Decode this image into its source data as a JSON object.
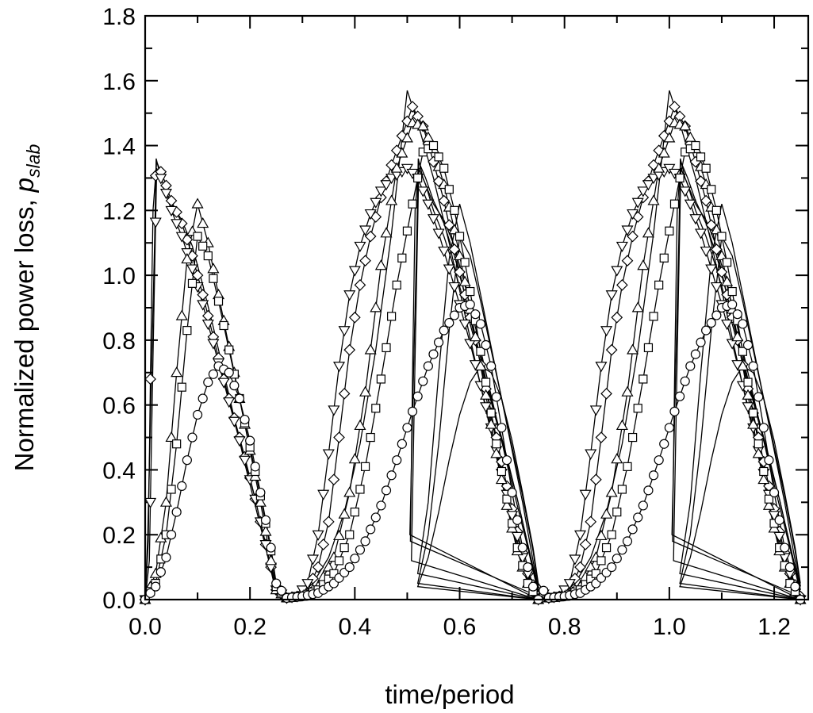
{
  "chart_data": {
    "type": "line",
    "xlabel": "time/period",
    "ylabel_main": "Normalized power loss, ",
    "ylabel_symbol": "p",
    "ylabel_subscript": "slab",
    "xlim": [
      0,
      1.265
    ],
    "ylim": [
      0,
      1.8
    ],
    "x_ticks": [
      0.0,
      0.2,
      0.4,
      0.6,
      0.8,
      1.0,
      1.2
    ],
    "x_tick_labels": [
      "0.0",
      "0.2",
      "0.4",
      "0.6",
      "0.8",
      "1.0",
      "1.2"
    ],
    "y_ticks": [
      0.0,
      0.2,
      0.4,
      0.6,
      0.8,
      1.0,
      1.2,
      1.4,
      1.6,
      1.8
    ],
    "y_tick_labels": [
      "0.0",
      "0.2",
      "0.4",
      "0.6",
      "0.8",
      "1.0",
      "1.2",
      "1.4",
      "1.6",
      "1.8"
    ],
    "grid": false,
    "legend": "none",
    "period": 0.5,
    "x_end": 1.25,
    "series": [
      {
        "marker": "none",
        "curve": [
          [
            0,
            0
          ],
          [
            0.005,
            0.2
          ],
          [
            0.012,
            0.7
          ],
          [
            0.018,
            1.1
          ],
          [
            0.021,
            1.36
          ],
          [
            0.03,
            1.3
          ],
          [
            0.05,
            1.22
          ],
          [
            0.07,
            1.17
          ],
          [
            0.09,
            1.09
          ],
          [
            0.11,
            0.97
          ],
          [
            0.13,
            0.84
          ],
          [
            0.15,
            0.7
          ],
          [
            0.17,
            0.56
          ],
          [
            0.19,
            0.42
          ],
          [
            0.21,
            0.29
          ],
          [
            0.23,
            0.16
          ],
          [
            0.25,
            0.02
          ],
          [
            0.26,
            0
          ],
          [
            0.29,
            0.01
          ],
          [
            0.32,
            0.05
          ],
          [
            0.35,
            0.13
          ],
          [
            0.38,
            0.27
          ],
          [
            0.41,
            0.48
          ],
          [
            0.44,
            0.77
          ],
          [
            0.47,
            1.13
          ],
          [
            0.5,
            1.57
          ],
          [
            0.5,
            1.57
          ],
          [
            0.52,
            1.47
          ],
          [
            0.55,
            1.3
          ],
          [
            0.58,
            1.1
          ],
          [
            0.61,
            0.88
          ],
          [
            0.64,
            0.66
          ],
          [
            0.67,
            0.44
          ],
          [
            0.7,
            0.23
          ],
          [
            0.73,
            0.07
          ],
          [
            0.75,
            0
          ]
        ]
      },
      {
        "marker": "diamond",
        "curve": [
          [
            0,
            0
          ],
          [
            0.006,
            0.18
          ],
          [
            0.01,
            0.68
          ],
          [
            0.015,
            1.2
          ],
          [
            0.022,
            1.35
          ],
          [
            0.035,
            1.3
          ],
          [
            0.05,
            1.23
          ],
          [
            0.07,
            1.16
          ],
          [
            0.09,
            1.06
          ],
          [
            0.11,
            0.94
          ],
          [
            0.13,
            0.81
          ],
          [
            0.15,
            0.68
          ],
          [
            0.17,
            0.56
          ],
          [
            0.19,
            0.44
          ],
          [
            0.21,
            0.31
          ],
          [
            0.23,
            0.17
          ],
          [
            0.25,
            0.03
          ],
          [
            0.27,
            0.005
          ],
          [
            0.29,
            0.01
          ],
          [
            0.31,
            0.03
          ],
          [
            0.33,
            0.1
          ],
          [
            0.35,
            0.24
          ],
          [
            0.37,
            0.5
          ],
          [
            0.39,
            0.77
          ],
          [
            0.41,
            0.97
          ],
          [
            0.43,
            1.12
          ],
          [
            0.45,
            1.24
          ],
          [
            0.47,
            1.34
          ],
          [
            0.49,
            1.43
          ],
          [
            0.51,
            1.52
          ],
          [
            0.53,
            1.46
          ],
          [
            0.55,
            1.35
          ],
          [
            0.57,
            1.23
          ],
          [
            0.59,
            1.08
          ],
          [
            0.61,
            0.94
          ],
          [
            0.63,
            0.8
          ],
          [
            0.65,
            0.65
          ],
          [
            0.67,
            0.5
          ],
          [
            0.69,
            0.35
          ],
          [
            0.71,
            0.21
          ],
          [
            0.73,
            0.08
          ],
          [
            0.75,
            0.01
          ]
        ]
      },
      {
        "marker": "triangle-down",
        "curve": [
          [
            0,
            0
          ],
          [
            0.008,
            0.12
          ],
          [
            0.015,
            0.75
          ],
          [
            0.022,
            1.33
          ],
          [
            0.035,
            1.28
          ],
          [
            0.05,
            1.2
          ],
          [
            0.07,
            1.12
          ],
          [
            0.09,
            1.02
          ],
          [
            0.11,
            0.91
          ],
          [
            0.13,
            0.79
          ],
          [
            0.15,
            0.67
          ],
          [
            0.17,
            0.55
          ],
          [
            0.19,
            0.43
          ],
          [
            0.21,
            0.31
          ],
          [
            0.23,
            0.17
          ],
          [
            0.25,
            0.03
          ],
          [
            0.27,
            0.005
          ],
          [
            0.29,
            0.01
          ],
          [
            0.31,
            0.05
          ],
          [
            0.33,
            0.2
          ],
          [
            0.35,
            0.45
          ],
          [
            0.37,
            0.72
          ],
          [
            0.39,
            0.94
          ],
          [
            0.41,
            1.09
          ],
          [
            0.43,
            1.19
          ],
          [
            0.45,
            1.26
          ],
          [
            0.47,
            1.3
          ],
          [
            0.49,
            1.32
          ],
          [
            0.5,
            1.33
          ],
          [
            0.52,
            1.3
          ],
          [
            0.54,
            1.22
          ],
          [
            0.56,
            1.13
          ],
          [
            0.58,
            1.02
          ],
          [
            0.6,
            0.91
          ],
          [
            0.62,
            0.79
          ],
          [
            0.64,
            0.66
          ],
          [
            0.66,
            0.53
          ],
          [
            0.68,
            0.39
          ],
          [
            0.7,
            0.26
          ],
          [
            0.72,
            0.13
          ],
          [
            0.74,
            0.03
          ],
          [
            0.75,
            0
          ]
        ]
      },
      {
        "marker": "triangle-up",
        "curve": [
          [
            0,
            0
          ],
          [
            0.02,
            0.08
          ],
          [
            0.04,
            0.3
          ],
          [
            0.06,
            0.7
          ],
          [
            0.08,
            1.05
          ],
          [
            0.1,
            1.22
          ],
          [
            0.12,
            1.1
          ],
          [
            0.14,
            0.94
          ],
          [
            0.16,
            0.78
          ],
          [
            0.18,
            0.62
          ],
          [
            0.2,
            0.46
          ],
          [
            0.22,
            0.3
          ],
          [
            0.24,
            0.12
          ],
          [
            0.25,
            0.03
          ],
          [
            0.27,
            0.005
          ],
          [
            0.3,
            0.01
          ],
          [
            0.33,
            0.04
          ],
          [
            0.36,
            0.13
          ],
          [
            0.39,
            0.33
          ],
          [
            0.42,
            0.64
          ],
          [
            0.45,
            1.03
          ],
          [
            0.48,
            1.33
          ],
          [
            0.51,
            1.47
          ],
          [
            0.53,
            1.46
          ],
          [
            0.55,
            1.39
          ],
          [
            0.57,
            1.28
          ],
          [
            0.59,
            1.14
          ],
          [
            0.61,
            0.98
          ],
          [
            0.63,
            0.81
          ],
          [
            0.65,
            0.63
          ],
          [
            0.67,
            0.45
          ],
          [
            0.69,
            0.29
          ],
          [
            0.71,
            0.15
          ],
          [
            0.73,
            0.05
          ],
          [
            0.75,
            0
          ]
        ]
      },
      {
        "marker": "square",
        "curve": [
          [
            0,
            0
          ],
          [
            0.02,
            0.05
          ],
          [
            0.04,
            0.2
          ],
          [
            0.06,
            0.48
          ],
          [
            0.08,
            0.83
          ],
          [
            0.1,
            1.12
          ],
          [
            0.12,
            1.06
          ],
          [
            0.14,
            0.92
          ],
          [
            0.16,
            0.77
          ],
          [
            0.18,
            0.62
          ],
          [
            0.2,
            0.47
          ],
          [
            0.22,
            0.32
          ],
          [
            0.24,
            0.15
          ],
          [
            0.25,
            0.04
          ],
          [
            0.27,
            0.005
          ],
          [
            0.3,
            0.01
          ],
          [
            0.33,
            0.03
          ],
          [
            0.36,
            0.08
          ],
          [
            0.39,
            0.2
          ],
          [
            0.42,
            0.41
          ],
          [
            0.45,
            0.68
          ],
          [
            0.48,
            0.97
          ],
          [
            0.51,
            1.22
          ],
          [
            0.53,
            1.38
          ],
          [
            0.55,
            1.4
          ],
          [
            0.57,
            1.33
          ],
          [
            0.59,
            1.2
          ],
          [
            0.61,
            1.04
          ],
          [
            0.63,
            0.86
          ],
          [
            0.65,
            0.67
          ],
          [
            0.67,
            0.48
          ],
          [
            0.69,
            0.31
          ],
          [
            0.71,
            0.16
          ],
          [
            0.73,
            0.05
          ],
          [
            0.75,
            0
          ]
        ]
      },
      {
        "marker": "circle",
        "curve": [
          [
            0,
            0
          ],
          [
            0.02,
            0.04
          ],
          [
            0.04,
            0.13
          ],
          [
            0.06,
            0.27
          ],
          [
            0.08,
            0.43
          ],
          [
            0.1,
            0.57
          ],
          [
            0.12,
            0.67
          ],
          [
            0.14,
            0.72
          ],
          [
            0.16,
            0.7
          ],
          [
            0.18,
            0.62
          ],
          [
            0.2,
            0.49
          ],
          [
            0.22,
            0.33
          ],
          [
            0.24,
            0.16
          ],
          [
            0.25,
            0.05
          ],
          [
            0.27,
            0.005
          ],
          [
            0.3,
            0.01
          ],
          [
            0.33,
            0.02
          ],
          [
            0.36,
            0.05
          ],
          [
            0.39,
            0.1
          ],
          [
            0.42,
            0.18
          ],
          [
            0.45,
            0.29
          ],
          [
            0.48,
            0.43
          ],
          [
            0.51,
            0.58
          ],
          [
            0.54,
            0.72
          ],
          [
            0.57,
            0.83
          ],
          [
            0.6,
            0.9
          ],
          [
            0.62,
            0.91
          ],
          [
            0.64,
            0.85
          ],
          [
            0.66,
            0.72
          ],
          [
            0.68,
            0.53
          ],
          [
            0.7,
            0.33
          ],
          [
            0.72,
            0.16
          ],
          [
            0.74,
            0.04
          ],
          [
            0.75,
            0
          ]
        ]
      }
    ]
  }
}
